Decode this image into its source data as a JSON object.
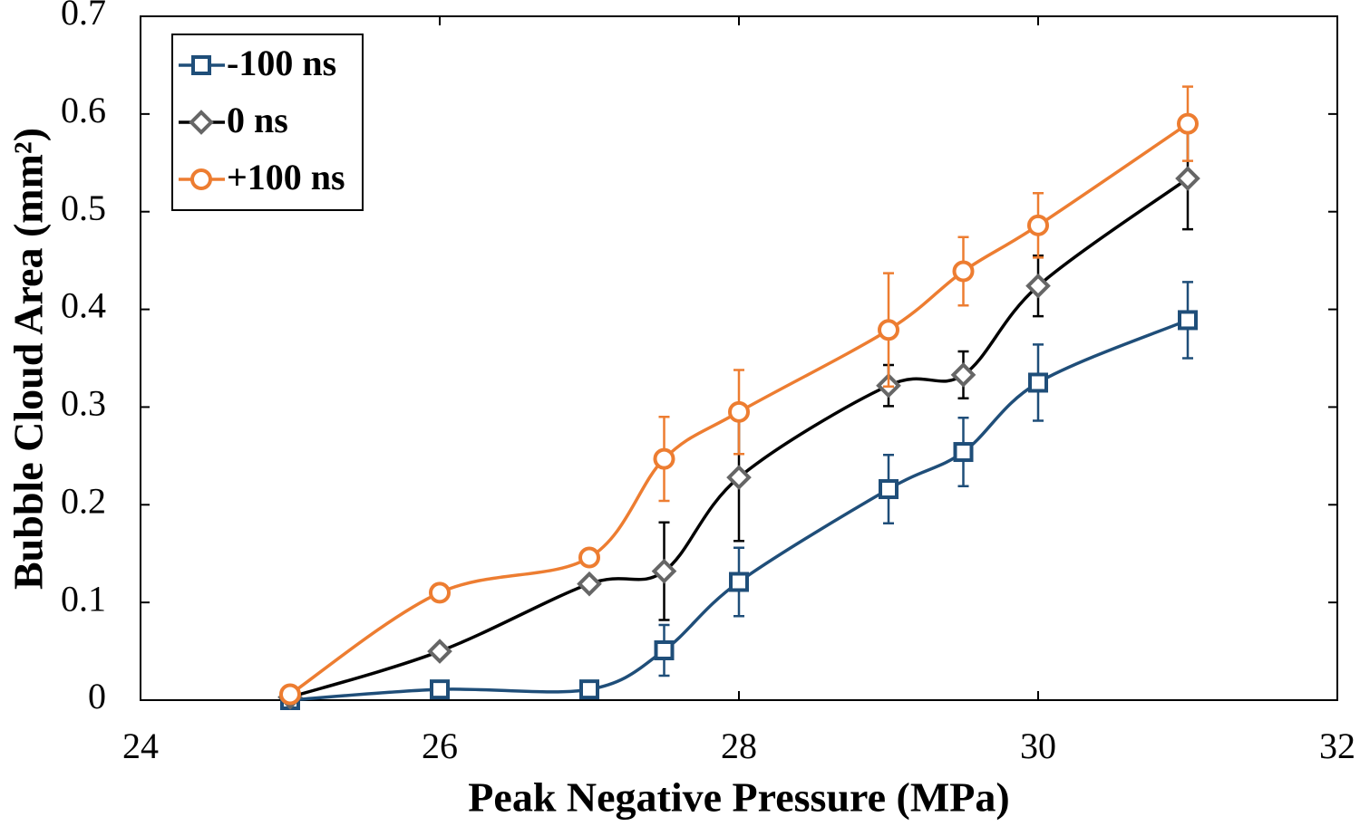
{
  "chart_data": {
    "type": "line",
    "x_label": "Peak Negative Pressure (MPa)",
    "y_label": "Bubble Cloud Area (mm²)",
    "xlim": [
      24,
      32
    ],
    "xticks": [
      24,
      26,
      28,
      30,
      32
    ],
    "ylim": [
      0,
      0.7
    ],
    "yticks": [
      0,
      0.1,
      0.2,
      0.3,
      0.4,
      0.5,
      0.6,
      0.7
    ],
    "x": [
      25,
      26,
      27,
      27.5,
      28,
      29,
      29.5,
      30,
      31
    ],
    "legend": "upper left",
    "series": [
      {
        "name": "-100 ns",
        "color": "#1f4e79",
        "marker_color": "#1f4e79",
        "marker": "square",
        "values": [
          0,
          0.011,
          0.011,
          0.051,
          0.121,
          0.216,
          0.254,
          0.325,
          0.389
        ],
        "errors": [
          null,
          null,
          null,
          0.026,
          0.035,
          0.035,
          0.035,
          0.039,
          0.039
        ]
      },
      {
        "name": "0 ns",
        "color": "#000000",
        "marker_color": "#666666",
        "marker": "diamond",
        "values": [
          0.003,
          0.05,
          0.119,
          0.132,
          0.228,
          0.322,
          0.333,
          0.424,
          0.534
        ],
        "errors": [
          null,
          null,
          null,
          0.05,
          0.065,
          0.021,
          0.024,
          0.031,
          0.052
        ]
      },
      {
        "name": "+100 ns",
        "color": "#ed7d31",
        "marker_color": "#ed7d31",
        "marker": "circle",
        "values": [
          0.006,
          0.11,
          0.146,
          0.247,
          0.295,
          0.379,
          0.439,
          0.486,
          0.59
        ],
        "errors": [
          null,
          null,
          null,
          0.043,
          0.043,
          0.058,
          0.035,
          0.033,
          0.038
        ]
      }
    ]
  }
}
